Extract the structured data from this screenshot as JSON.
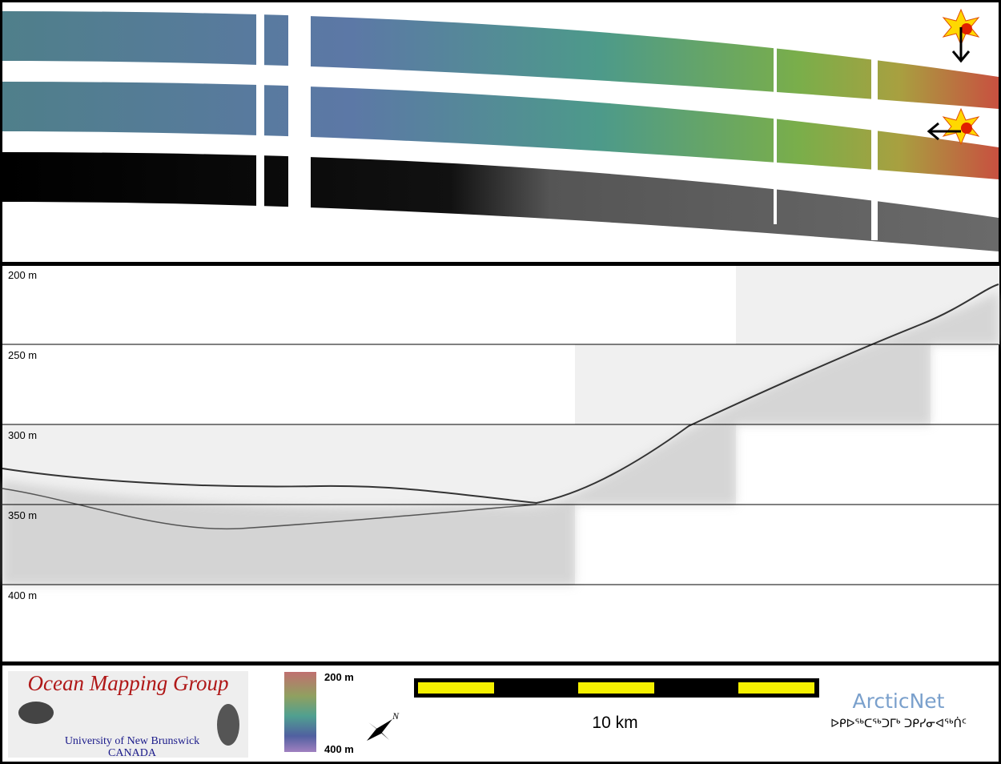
{
  "profile": {
    "depth_labels": [
      "200 m",
      "250 m",
      "300 m",
      "350 m",
      "400 m"
    ]
  },
  "footer": {
    "logo_title": "Ocean Mapping Group",
    "logo_university": "University of New Brunswick",
    "logo_country": "CANADA",
    "colorbar_top": "200 m",
    "colorbar_bottom": "400 m",
    "north": "N",
    "scale": "10 km",
    "partner": "ArcticNet",
    "partner_syllabics": "ᐅᑭᐅᖅᑕᖅᑐᒥᒃ ᑐᑭᓯᓂᐊᖅᑏᑦ"
  }
}
